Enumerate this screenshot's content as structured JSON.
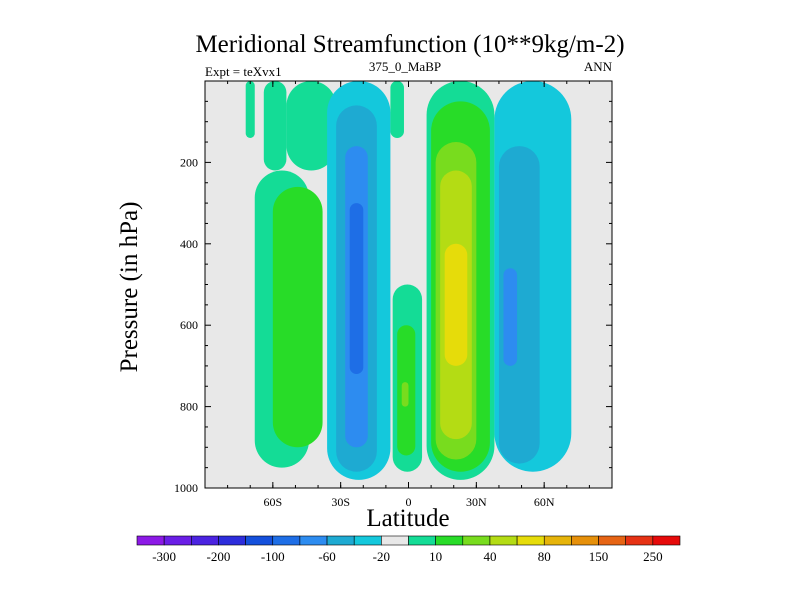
{
  "chart_data": {
    "type": "contour",
    "title": "Meridional Streamfunction (10**9kg/m-2)",
    "left_label": "Expt = teXvx1",
    "center_label": "375_0_MaBP",
    "right_label": "ANN",
    "xlabel": "Latitude",
    "ylabel": "Pressure (in hPa)",
    "xlim": [
      -90,
      90
    ],
    "ylim": [
      1000,
      0
    ],
    "x_ticks": [
      {
        "value": -60,
        "label": "60S"
      },
      {
        "value": -30,
        "label": "30S"
      },
      {
        "value": 0,
        "label": "0"
      },
      {
        "value": 30,
        "label": "30N"
      },
      {
        "value": 60,
        "label": "60N"
      }
    ],
    "y_ticks": [
      {
        "value": 200,
        "label": "200"
      },
      {
        "value": 400,
        "label": "400"
      },
      {
        "value": 600,
        "label": "600"
      },
      {
        "value": 800,
        "label": "800"
      },
      {
        "value": 1000,
        "label": "1000"
      }
    ],
    "colorbar": {
      "colors": [
        "#8c19e6",
        "#6a1ee6",
        "#4b23e1",
        "#2d2ddc",
        "#1450dc",
        "#1e6ee6",
        "#2d8cf0",
        "#1eaad2",
        "#14c8dc",
        "#e8e8e8",
        "#14dc96",
        "#28dc28",
        "#78dc1e",
        "#b4dc14",
        "#e6dc0a",
        "#e6b40a",
        "#e6900a",
        "#e66414",
        "#e63214",
        "#e60a0a"
      ],
      "labels": [
        {
          "value": "-300",
          "after_box": 1
        },
        {
          "value": "-200",
          "after_box": 3
        },
        {
          "value": "-100",
          "after_box": 5
        },
        {
          "value": "-60",
          "after_box": 7
        },
        {
          "value": "-20",
          "after_box": 9
        },
        {
          "value": "10",
          "after_box": 11
        },
        {
          "value": "40",
          "after_box": 13
        },
        {
          "value": "80",
          "after_box": 15
        },
        {
          "value": "150",
          "after_box": 17
        },
        {
          "value": "250",
          "after_box": 19
        }
      ]
    },
    "cells": [
      {
        "level": 0,
        "lat0": -72,
        "lat1": -68,
        "p0": 0,
        "p1": 140,
        "color": "#14dc96"
      },
      {
        "level": 0,
        "lat0": -64,
        "lat1": -54,
        "p0": 0,
        "p1": 220,
        "color": "#14dc96"
      },
      {
        "level": 0,
        "lat0": -68,
        "lat1": -44,
        "p0": 220,
        "p1": 950,
        "color": "#14dc96"
      },
      {
        "level": 0,
        "lat0": -54,
        "lat1": -32,
        "p0": 0,
        "p1": 220,
        "color": "#14dc96"
      },
      {
        "level": 1,
        "lat0": -60,
        "lat1": -38,
        "p0": 260,
        "p1": 900,
        "color": "#28dc28"
      },
      {
        "level": 0,
        "lat0": -36,
        "lat1": -8,
        "p0": 0,
        "p1": 980,
        "color": "#14c8dc"
      },
      {
        "level": 1,
        "lat0": -32,
        "lat1": -14,
        "p0": 60,
        "p1": 960,
        "color": "#1eaad2"
      },
      {
        "level": 2,
        "lat0": -28,
        "lat1": -18,
        "p0": 160,
        "p1": 900,
        "color": "#2d8cf0"
      },
      {
        "level": 3,
        "lat0": -26,
        "lat1": -20,
        "p0": 300,
        "p1": 720,
        "color": "#1e6ee6"
      },
      {
        "level": 0,
        "lat0": -8,
        "lat1": -2,
        "p0": 0,
        "p1": 140,
        "color": "#14dc96"
      },
      {
        "level": 0,
        "lat0": -7,
        "lat1": 6,
        "p0": 500,
        "p1": 960,
        "color": "#14dc96"
      },
      {
        "level": 1,
        "lat0": -5,
        "lat1": 3,
        "p0": 600,
        "p1": 920,
        "color": "#28dc28"
      },
      {
        "level": 2,
        "lat0": -3,
        "lat1": 0,
        "p0": 740,
        "p1": 800,
        "color": "#78dc1e"
      },
      {
        "level": 0,
        "lat0": 8,
        "lat1": 38,
        "p0": 0,
        "p1": 980,
        "color": "#14dc96"
      },
      {
        "level": 1,
        "lat0": 10,
        "lat1": 36,
        "p0": 50,
        "p1": 960,
        "color": "#28dc28"
      },
      {
        "level": 2,
        "lat0": 12,
        "lat1": 30,
        "p0": 150,
        "p1": 930,
        "color": "#78dc1e"
      },
      {
        "level": 3,
        "lat0": 14,
        "lat1": 28,
        "p0": 220,
        "p1": 880,
        "color": "#b4dc14"
      },
      {
        "level": 4,
        "lat0": 16,
        "lat1": 26,
        "p0": 400,
        "p1": 700,
        "color": "#e6dc0a"
      },
      {
        "level": 0,
        "lat0": 38,
        "lat1": 72,
        "p0": 0,
        "p1": 960,
        "color": "#14c8dc"
      },
      {
        "level": 1,
        "lat0": 40,
        "lat1": 58,
        "p0": 160,
        "p1": 940,
        "color": "#1eaad2"
      },
      {
        "level": 2,
        "lat0": 42,
        "lat1": 48,
        "p0": 460,
        "p1": 700,
        "color": "#2d8cf0"
      }
    ]
  }
}
